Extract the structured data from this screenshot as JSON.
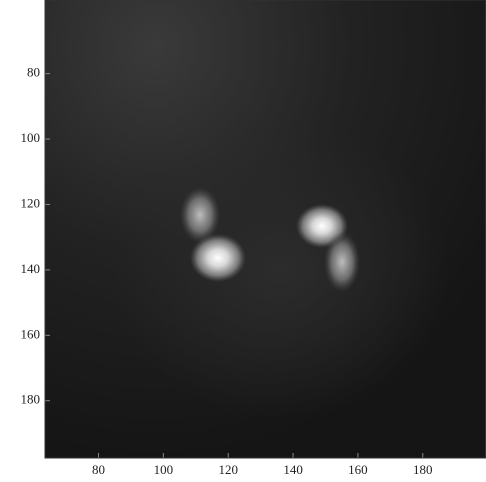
{
  "chart_data": {
    "type": "image",
    "xlim": [
      63.5,
      199.5
    ],
    "xticks": [
      80,
      100,
      120,
      140,
      160,
      180
    ],
    "ylim": [
      57.5,
      197.5
    ],
    "yticks": [
      80,
      100,
      120,
      140,
      160,
      180
    ],
    "y_inverted": true
  }
}
